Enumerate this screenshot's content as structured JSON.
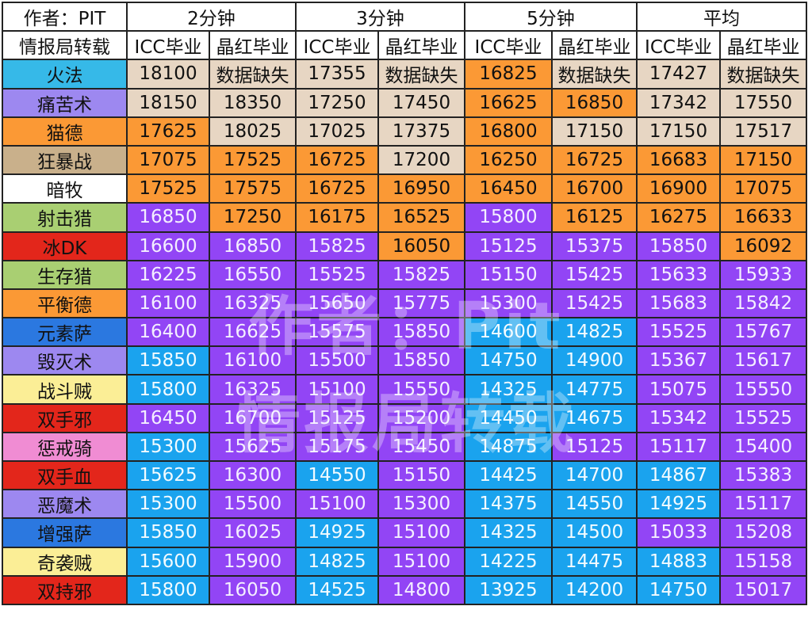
{
  "header": {
    "corner_author": "作者：PIT",
    "corner_source": "情报局转载",
    "groups": [
      "2分钟",
      "3分钟",
      "5分钟",
      "平均"
    ],
    "subheaders": [
      "ICC毕业",
      "晶红毕业",
      "ICC毕业",
      "晶红毕业",
      "ICC毕业",
      "晶红毕业",
      "ICC毕业",
      "晶红毕业"
    ]
  },
  "rows": [
    {
      "name": "火法",
      "cls": "mage",
      "values": [
        "18100",
        "数据缺失",
        "17355",
        "数据缺失",
        "16825",
        "数据缺失",
        "17427",
        "数据缺失"
      ],
      "colors": [
        "bisque",
        "bisque",
        "bisque",
        "bisque",
        "orange",
        "bisque",
        "bisque",
        "bisque"
      ]
    },
    {
      "name": "痛苦术",
      "cls": "warlock",
      "values": [
        "18150",
        "18350",
        "17250",
        "17450",
        "16625",
        "16850",
        "17342",
        "17550"
      ],
      "colors": [
        "bisque",
        "bisque",
        "bisque",
        "bisque",
        "orange",
        "orange",
        "bisque",
        "bisque"
      ]
    },
    {
      "name": "猫德",
      "cls": "druid",
      "values": [
        "17625",
        "18025",
        "17025",
        "17375",
        "16800",
        "17150",
        "17150",
        "17517"
      ],
      "colors": [
        "orange",
        "bisque",
        "bisque",
        "bisque",
        "orange",
        "bisque",
        "bisque",
        "bisque"
      ]
    },
    {
      "name": "狂暴战",
      "cls": "warrior",
      "values": [
        "17075",
        "17525",
        "16725",
        "17200",
        "16250",
        "16725",
        "16683",
        "17150"
      ],
      "colors": [
        "orange",
        "orange",
        "orange",
        "bisque",
        "orange",
        "orange",
        "orange",
        "orange"
      ]
    },
    {
      "name": "暗牧",
      "cls": "priest",
      "values": [
        "17525",
        "17575",
        "16725",
        "16950",
        "16450",
        "16700",
        "16900",
        "17075"
      ],
      "colors": [
        "orange",
        "orange",
        "orange",
        "orange",
        "orange",
        "orange",
        "orange",
        "orange"
      ]
    },
    {
      "name": "射击猎",
      "cls": "hunter",
      "values": [
        "16850",
        "17250",
        "16175",
        "16525",
        "15800",
        "16125",
        "16275",
        "16633"
      ],
      "colors": [
        "purple",
        "orange",
        "orange",
        "orange",
        "purple",
        "orange",
        "orange",
        "orange"
      ]
    },
    {
      "name": "冰DK",
      "cls": "dk",
      "values": [
        "16600",
        "16850",
        "15825",
        "16050",
        "15125",
        "15375",
        "15850",
        "16092"
      ],
      "colors": [
        "purple",
        "purple",
        "purple",
        "orange",
        "purple",
        "purple",
        "purple",
        "orange"
      ]
    },
    {
      "name": "生存猎",
      "cls": "hunter",
      "values": [
        "16225",
        "16550",
        "15525",
        "15825",
        "15150",
        "15425",
        "15633",
        "15933"
      ],
      "colors": [
        "purple",
        "purple",
        "purple",
        "purple",
        "purple",
        "purple",
        "purple",
        "purple"
      ]
    },
    {
      "name": "平衡德",
      "cls": "druid",
      "values": [
        "16100",
        "16325",
        "15650",
        "15775",
        "15300",
        "15425",
        "15683",
        "15842"
      ],
      "colors": [
        "purple",
        "purple",
        "purple",
        "purple",
        "purple",
        "purple",
        "purple",
        "purple"
      ]
    },
    {
      "name": "元素萨",
      "cls": "shaman",
      "values": [
        "16400",
        "16625",
        "15575",
        "15850",
        "14600",
        "14825",
        "15525",
        "15767"
      ],
      "colors": [
        "purple",
        "purple",
        "purple",
        "purple",
        "blue",
        "blue",
        "purple",
        "purple"
      ]
    },
    {
      "name": "毁灭术",
      "cls": "warlock",
      "values": [
        "15850",
        "16100",
        "15500",
        "15850",
        "14750",
        "14900",
        "15367",
        "15617"
      ],
      "colors": [
        "blue",
        "purple",
        "purple",
        "purple",
        "blue",
        "blue",
        "purple",
        "purple"
      ]
    },
    {
      "name": "战斗贼",
      "cls": "rogue",
      "values": [
        "15800",
        "16325",
        "15100",
        "15550",
        "14325",
        "14775",
        "15075",
        "15550"
      ],
      "colors": [
        "blue",
        "purple",
        "purple",
        "purple",
        "blue",
        "blue",
        "purple",
        "purple"
      ]
    },
    {
      "name": "双手邪",
      "cls": "dk",
      "values": [
        "16450",
        "16700",
        "15125",
        "15200",
        "14450",
        "14675",
        "15342",
        "15525"
      ],
      "colors": [
        "purple",
        "purple",
        "purple",
        "purple",
        "blue",
        "blue",
        "purple",
        "purple"
      ]
    },
    {
      "name": "惩戒骑",
      "cls": "paladin",
      "values": [
        "15300",
        "15625",
        "15175",
        "15450",
        "14875",
        "15125",
        "15117",
        "15400"
      ],
      "colors": [
        "blue",
        "purple",
        "purple",
        "purple",
        "blue",
        "purple",
        "purple",
        "purple"
      ]
    },
    {
      "name": "双手血",
      "cls": "dk",
      "values": [
        "15625",
        "16300",
        "14550",
        "15150",
        "14425",
        "14700",
        "14867",
        "15383"
      ],
      "colors": [
        "blue",
        "purple",
        "blue",
        "purple",
        "blue",
        "blue",
        "blue",
        "purple"
      ]
    },
    {
      "name": "恶魔术",
      "cls": "warlock",
      "values": [
        "15300",
        "15500",
        "15100",
        "15300",
        "14375",
        "14550",
        "14925",
        "15117"
      ],
      "colors": [
        "blue",
        "purple",
        "purple",
        "purple",
        "blue",
        "blue",
        "blue",
        "purple"
      ]
    },
    {
      "name": "增强萨",
      "cls": "shaman",
      "values": [
        "15850",
        "16025",
        "14925",
        "15100",
        "14325",
        "14500",
        "15033",
        "15208"
      ],
      "colors": [
        "blue",
        "purple",
        "blue",
        "purple",
        "blue",
        "blue",
        "purple",
        "purple"
      ]
    },
    {
      "name": "奇袭贼",
      "cls": "rogue",
      "values": [
        "15600",
        "15900",
        "14825",
        "15100",
        "14225",
        "14475",
        "14883",
        "15158"
      ],
      "colors": [
        "blue",
        "purple",
        "blue",
        "purple",
        "blue",
        "blue",
        "blue",
        "purple"
      ]
    },
    {
      "name": "双持邪",
      "cls": "dk",
      "values": [
        "15800",
        "16050",
        "14525",
        "14800",
        "13925",
        "14200",
        "14750",
        "15017"
      ],
      "colors": [
        "blue",
        "purple",
        "blue",
        "purple",
        "blue",
        "blue",
        "blue",
        "purple"
      ]
    }
  ],
  "watermark": {
    "line1": "作者：Pit",
    "line2": "情报局转载"
  },
  "palette": {
    "bisque": "#e7d6c3",
    "orange": "#fb9935",
    "purple": "#9245f5",
    "blue": "#1aa3ee",
    "class_colors": {
      "mage": "#36b9e8",
      "warlock": "#9d88f0",
      "druid": "#fb9935",
      "warrior": "#c9b08b",
      "priest": "#ffffff",
      "hunter": "#a9cf72",
      "dk": "#e3261b",
      "shaman": "#2b78e0",
      "rogue": "#fbee96",
      "paladin": "#f08cd3"
    }
  }
}
